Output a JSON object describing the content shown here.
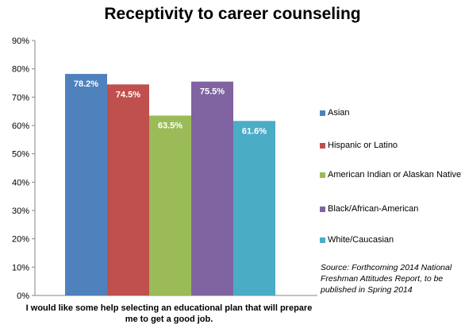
{
  "chart_data": {
    "type": "bar",
    "title": "Receptivity to career counseling",
    "categories": [
      "I would like some help selecting an educational plan that will prepare me to get a good job."
    ],
    "series": [
      {
        "name": "Asian",
        "values": [
          78.2
        ],
        "label": "78.2%",
        "color": "#4f81bd"
      },
      {
        "name": "Hispanic or Latino",
        "values": [
          74.5
        ],
        "label": "74.5%",
        "color": "#c0504d"
      },
      {
        "name": "American Indian or Alaskan Native",
        "values": [
          63.5
        ],
        "label": "63.5%",
        "color": "#9bbb59"
      },
      {
        "name": "Black/African-American",
        "values": [
          75.5
        ],
        "label": "75.5%",
        "color": "#8064a2"
      },
      {
        "name": "White/Caucasian",
        "values": [
          61.6
        ],
        "label": "61.6%",
        "color": "#4bacc6"
      }
    ],
    "ylim": [
      0,
      90
    ],
    "yticks": [
      "0%",
      "10%",
      "20%",
      "30%",
      "40%",
      "50%",
      "60%",
      "70%",
      "80%",
      "90%"
    ],
    "grid": false,
    "legend_position": "right",
    "source_note": "Source:  Forthcoming 2014 National Freshman Attitudes Report, to be published in Spring 2014"
  }
}
